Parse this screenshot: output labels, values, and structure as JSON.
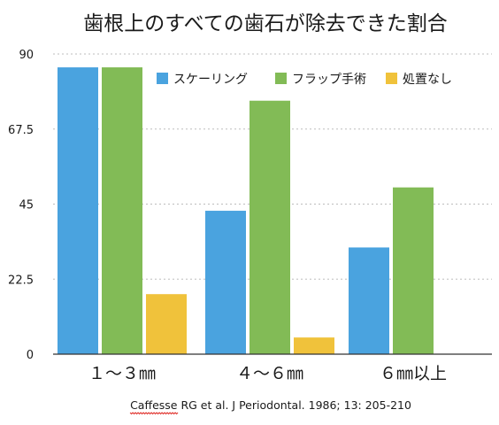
{
  "colors": {
    "background": "#ffffff",
    "text": "#1a1a1a",
    "grid": "#bdbdbd",
    "axis": "#333333",
    "source_underline": "#e0302a"
  },
  "chart_data": {
    "type": "bar",
    "title": "歯根上のすべての歯石が除去できた割合",
    "xlabel": "",
    "ylabel": "",
    "categories": [
      "１～３㎜",
      "４～６㎜",
      "６㎜以上"
    ],
    "series": [
      {
        "name": "スケーリング",
        "color": "#4aa3df",
        "values": [
          86,
          43,
          32
        ]
      },
      {
        "name": "フラップ手術",
        "color": "#82bb56",
        "values": [
          86,
          76,
          50
        ]
      },
      {
        "name": "処置なし",
        "color": "#f0c23b",
        "values": [
          18,
          5,
          null
        ]
      }
    ],
    "ylim": [
      0,
      90
    ],
    "yticks": [
      0,
      22.5,
      45,
      67.5,
      90
    ],
    "ytick_labels": [
      "0",
      "22.5",
      "45",
      "67.5",
      "90"
    ],
    "grid": true,
    "legend_position": "top-right",
    "source_note": {
      "author": "Caffesse",
      "rest": " RG et al. J Periodontal. 1986; 13: 205-210"
    }
  }
}
